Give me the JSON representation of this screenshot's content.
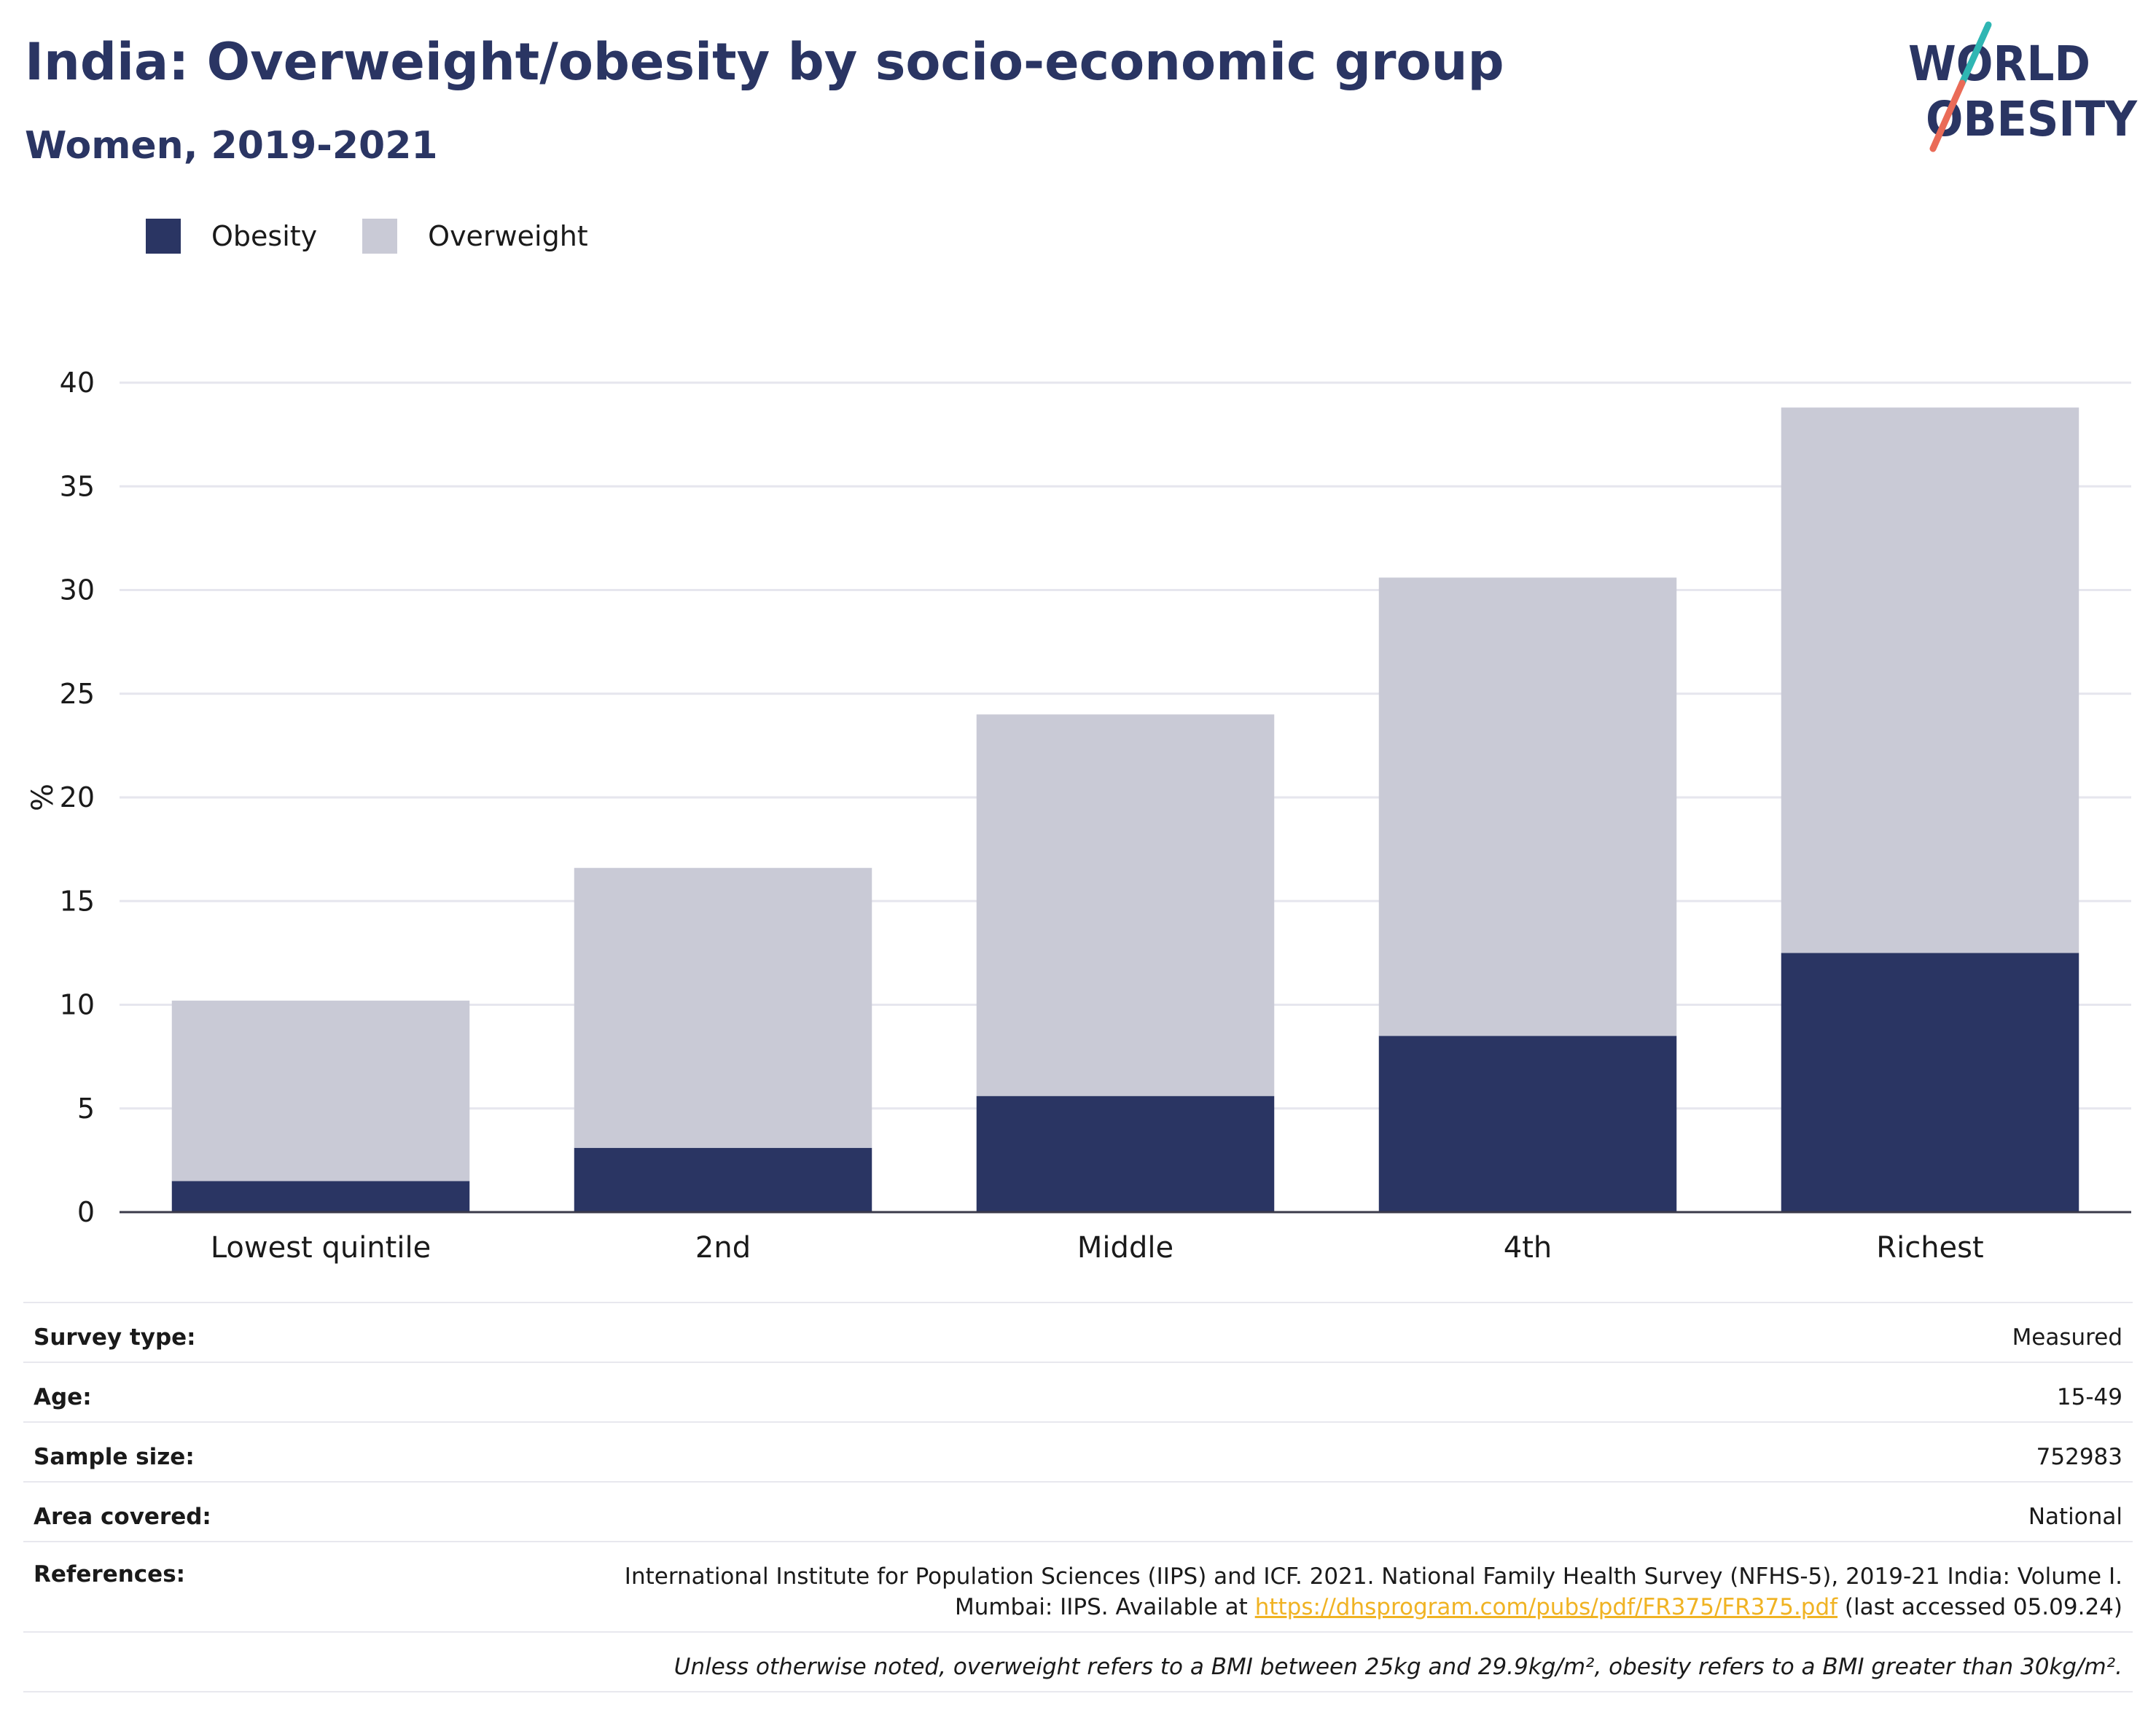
{
  "header": {
    "title": "India: Overweight/obesity by socio-economic group",
    "subtitle": "Women, 2019-2021"
  },
  "logo": {
    "line1": "WORLD",
    "line2": "OBESITY",
    "slash_colors": [
      "#2fb6b3",
      "#ea6b57"
    ]
  },
  "legend": {
    "obesity_label": "Obesity",
    "overweight_label": "Overweight"
  },
  "colors": {
    "obesity": "#2a3563",
    "overweight": "#c9cad6",
    "title": "#2a3563",
    "link": "#f0b323"
  },
  "chart_data": {
    "type": "bar",
    "stacked": true,
    "categories": [
      "Lowest quintile",
      "2nd",
      "Middle",
      "4th",
      "Richest"
    ],
    "series": [
      {
        "name": "Obesity",
        "values": [
          1.5,
          3.1,
          5.6,
          8.5,
          12.5
        ]
      },
      {
        "name": "Overweight",
        "values": [
          8.7,
          13.5,
          18.4,
          22.1,
          26.3
        ]
      }
    ],
    "totals": [
      10.2,
      16.6,
      24.0,
      30.6,
      38.8
    ],
    "ylabel": "%",
    "xlabel": "",
    "ylim": [
      0,
      40
    ],
    "yticks": [
      0,
      5,
      10,
      15,
      20,
      25,
      30,
      35,
      40
    ],
    "grid": true,
    "legend_position": "top-left"
  },
  "info": {
    "survey_type_label": "Survey type:",
    "survey_type_value": "Measured",
    "age_label": "Age:",
    "age_value": "15-49",
    "sample_size_label": "Sample size:",
    "sample_size_value": "752983",
    "area_label": "Area covered:",
    "area_value": "National",
    "references_label": "References:",
    "references_line1": "International Institute for Population Sciences (IIPS) and ICF. 2021. National Family Health Survey (NFHS-5), 2019-21 India: Volume I.",
    "references_line2_pre": "Mumbai: IIPS. Available at ",
    "references_link": "https://dhsprogram.com/pubs/pdf/FR375/FR375.pdf",
    "references_line2_post": " (last accessed 05.09.24)",
    "note": "Unless otherwise noted, overweight refers to a BMI between 25kg and 29.9kg/m², obesity refers to a BMI greater than 30kg/m²."
  }
}
